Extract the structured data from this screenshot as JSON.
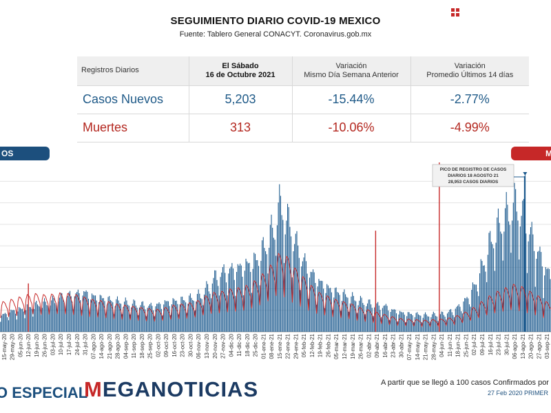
{
  "header": {
    "title": "SEGUIMIENTO DIARIO COVID-19 MEXICO",
    "source": "Fuente: Tablero General CONACYT. Coronavirus.gob.mx"
  },
  "stats_table": {
    "columns": {
      "c0": "Registros Diarios",
      "c1_line1": "El Sábado",
      "c1_line2": "16 de Octubre 2021",
      "c2_line1": "Variación",
      "c2_line2": "Mismo Día Semana Anterior",
      "c3_line1": "Variación",
      "c3_line2": "Promedio Últimos 14 días"
    },
    "rows": [
      {
        "label": "Casos Nuevos",
        "value": "5,203",
        "var_week": "-15.44%",
        "var_14d": "-2.77%"
      },
      {
        "label": "Muertes",
        "value": "313",
        "var_week": "-10.06%",
        "var_14d": "-4.99%"
      }
    ]
  },
  "pills": {
    "left": "OS",
    "right": "M"
  },
  "colors": {
    "cases": "#1c5a8e",
    "deaths": "#c62828",
    "brand_blue": "#1c3b63"
  },
  "footer": {
    "especial": "O ESPECIAL",
    "brand_m": "M",
    "brand_rest": "EGANOTICIAS",
    "note": "A partir que se llegó a 100 casos Confirmados por",
    "date_note": "27 Feb 2020 PRIMER"
  },
  "chart_data": {
    "type": "bar",
    "x_ticks": [
      "15-may-20",
      "29-may-20",
      "05-jun-20",
      "12-jun-20",
      "19-jun-20",
      "26-jun-20",
      "03-jul-20",
      "10-jul-20",
      "17-jul-20",
      "24-jul-20",
      "31-jul-20",
      "07-ago-20",
      "14-ago-20",
      "21-ago-20",
      "28-ago-20",
      "04-sep-20",
      "11-sep-20",
      "18-sep-20",
      "25-sep-20",
      "02-oct-20",
      "09-oct-20",
      "16-oct-20",
      "23-oct-20",
      "30-oct-20",
      "06-nov-20",
      "13-nov-20",
      "20-nov-20",
      "27-nov-20",
      "04-dic-20",
      "11-dic-20",
      "18-dic-20",
      "25-dic-20",
      "01-ene-21",
      "08-ene-21",
      "15-ene-21",
      "22-ene-21",
      "29-ene-21",
      "05-feb-21",
      "12-feb-21",
      "19-feb-21",
      "26-feb-21",
      "05-mar-21",
      "12-mar-21",
      "19-mar-21",
      "26-mar-21",
      "02-abr-21",
      "09-abr-21",
      "16-abr-21",
      "23-abr-21",
      "30-abr-21",
      "07-may-21",
      "14-may-21",
      "21-may-21",
      "28-may-21",
      "04-jun-21",
      "11-jun-21",
      "18-jun-21",
      "25-jun-21",
      "02-jul-21",
      "09-jul-21",
      "16-jul-21",
      "23-jul-21",
      "30-jul-21",
      "06-ago-21",
      "13-ago-21",
      "20-ago-21",
      "27-ago-21",
      "03-sep-21"
    ],
    "cases_weekly": [
      3000,
      3600,
      3900,
      4300,
      4700,
      5000,
      5400,
      6000,
      6300,
      6600,
      6700,
      6100,
      5800,
      5500,
      5300,
      5100,
      4900,
      4700,
      4500,
      4700,
      5100,
      5300,
      5500,
      5800,
      6300,
      7600,
      9500,
      10400,
      10800,
      11100,
      11600,
      12400,
      14500,
      17500,
      22000,
      19500,
      15500,
      12200,
      10000,
      8500,
      7500,
      6900,
      6400,
      5900,
      5400,
      5000,
      4600,
      4400,
      3700,
      3300,
      3100,
      3000,
      2900,
      3000,
      3100,
      3500,
      4300,
      5600,
      7900,
      11400,
      15600,
      18500,
      20800,
      22500,
      20500,
      17000,
      13500,
      10500
    ],
    "deaths_weekly": [
      520,
      560,
      600,
      640,
      660,
      640,
      650,
      670,
      660,
      640,
      600,
      560,
      540,
      520,
      480,
      460,
      440,
      420,
      400,
      390,
      420,
      460,
      480,
      500,
      540,
      620,
      680,
      700,
      740,
      760,
      800,
      880,
      1000,
      1150,
      1350,
      1300,
      1100,
      950,
      800,
      680,
      620,
      560,
      520,
      480,
      420,
      380,
      340,
      300,
      260,
      230,
      220,
      210,
      200,
      210,
      220,
      240,
      280,
      340,
      420,
      520,
      620,
      700,
      760,
      820,
      780,
      700,
      620,
      520
    ],
    "annotation_lines": [
      "PICO DE REGISTRO DE CASOS",
      "DIARIOS 18 AGOSTO 21",
      "28,953 CASOS DIARIOS"
    ],
    "peak_value": 28953,
    "ylim": [
      0,
      31000
    ]
  }
}
